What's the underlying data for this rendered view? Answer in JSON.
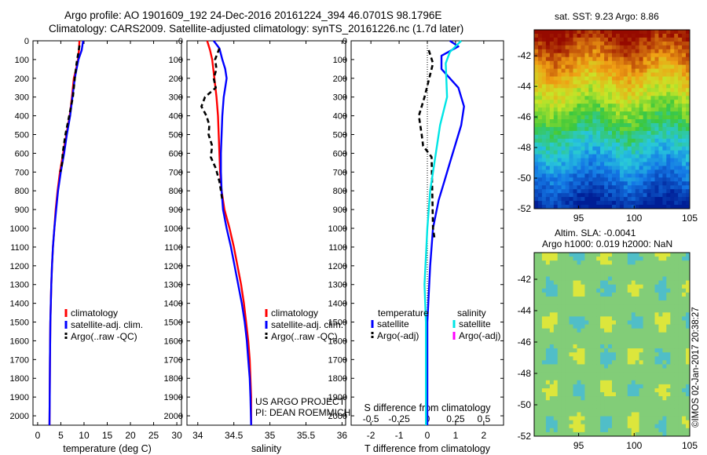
{
  "title_line1": "Argo profile: AO 1901609_192 24-Dec-2016 20161224_394 46.0701S 98.1796E",
  "title_line2": "Climatology: CARS2009. Satellite-adjusted climatology: synTS_20161226.nc (1.7d later)",
  "sst_title": "sat. SST: 9.23 Argo: 8.86",
  "sla_title_1": "Altim. SLA: -0.0041",
  "sla_title_2": "Argo h1000: 0.019 h2000: NaN",
  "stamp": "©IMOS 02-Jan-2017 20:38:27",
  "colors": {
    "climatology": "#ff0000",
    "satellite": "#0000ff",
    "argo": "#000000",
    "salinity_satellite": "#00e5e5",
    "salinity_argo": "#ff00ff"
  },
  "chart_data": [
    {
      "type": "line",
      "xlabel": "temperature (deg C)",
      "x_ticks": [
        "0",
        "5",
        "10",
        "15",
        "20",
        "25",
        "30"
      ],
      "xlim": [
        -1,
        31
      ],
      "y_ticks": [
        "0",
        "100",
        "200",
        "300",
        "400",
        "500",
        "600",
        "700",
        "800",
        "900",
        "1000",
        "1100",
        "1200",
        "1300",
        "1400",
        "1500",
        "1600",
        "1700",
        "1800",
        "1900",
        "2000"
      ],
      "ylim": [
        2050,
        0
      ],
      "legend": [
        "climatology",
        "satellite-adj. clim.",
        "Argo(..raw -QC)"
      ],
      "series": [
        {
          "name": "climatology",
          "color": "#ff0000",
          "points": [
            [
              9.0,
              0
            ],
            [
              8.9,
              50
            ],
            [
              8.7,
              100
            ],
            [
              8.3,
              150
            ],
            [
              7.8,
              200
            ],
            [
              7.4,
              300
            ],
            [
              6.9,
              400
            ],
            [
              6.2,
              500
            ],
            [
              5.5,
              600
            ],
            [
              4.8,
              700
            ],
            [
              4.3,
              800
            ],
            [
              3.9,
              900
            ],
            [
              3.6,
              1000
            ],
            [
              3.3,
              1100
            ],
            [
              3.1,
              1200
            ],
            [
              2.95,
              1300
            ],
            [
              2.85,
              1400
            ],
            [
              2.75,
              1500
            ],
            [
              2.65,
              1700
            ],
            [
              2.6,
              1900
            ],
            [
              2.55,
              2050
            ]
          ]
        },
        {
          "name": "satellite-adj. clim.",
          "color": "#0000ff",
          "points": [
            [
              9.8,
              0
            ],
            [
              9.5,
              50
            ],
            [
              8.8,
              100
            ],
            [
              8.4,
              150
            ],
            [
              8.0,
              200
            ],
            [
              7.5,
              300
            ],
            [
              7.0,
              400
            ],
            [
              6.3,
              500
            ],
            [
              5.7,
              600
            ],
            [
              5.0,
              700
            ],
            [
              4.4,
              800
            ],
            [
              4.0,
              900
            ],
            [
              3.6,
              1000
            ],
            [
              3.3,
              1100
            ],
            [
              3.1,
              1200
            ],
            [
              2.95,
              1300
            ],
            [
              2.85,
              1400
            ],
            [
              2.75,
              1500
            ],
            [
              2.65,
              1700
            ],
            [
              2.6,
              1900
            ],
            [
              2.55,
              2050
            ]
          ]
        },
        {
          "name": "Argo(..raw -QC)",
          "color": "#000000",
          "dashed": true,
          "points": [
            [
              9.0,
              25
            ],
            [
              8.8,
              60
            ],
            [
              8.4,
              120
            ],
            [
              8.0,
              200
            ],
            [
              7.6,
              300
            ],
            [
              6.8,
              400
            ],
            [
              6.0,
              500
            ],
            [
              5.4,
              600
            ],
            [
              5.3,
              650
            ],
            [
              4.9,
              700
            ]
          ]
        }
      ]
    },
    {
      "type": "line",
      "xlabel": "salinity",
      "x_ticks": [
        "34",
        "34.5",
        "35",
        "35.5",
        "36"
      ],
      "xlim": [
        33.85,
        36.05
      ],
      "legend": [
        "climatology",
        "satellite-adj. clim.",
        "Argo(..raw -QC)"
      ],
      "annotation": [
        "US ARGO PROJECT",
        "PI: DEAN ROEMMICH"
      ],
      "series": [
        {
          "name": "climatology",
          "color": "#ff0000",
          "points": [
            [
              34.13,
              0
            ],
            [
              34.17,
              50
            ],
            [
              34.2,
              100
            ],
            [
              34.23,
              200
            ],
            [
              34.26,
              300
            ],
            [
              34.28,
              400
            ],
            [
              34.29,
              500
            ],
            [
              34.3,
              600
            ],
            [
              34.31,
              700
            ],
            [
              34.33,
              800
            ],
            [
              34.37,
              900
            ],
            [
              34.44,
              1000
            ],
            [
              34.5,
              1100
            ],
            [
              34.55,
              1200
            ],
            [
              34.6,
              1300
            ],
            [
              34.64,
              1400
            ],
            [
              34.67,
              1500
            ],
            [
              34.7,
              1600
            ],
            [
              34.72,
              1700
            ],
            [
              34.73,
              1800
            ],
            [
              34.74,
              1900
            ],
            [
              34.74,
              2050
            ]
          ]
        },
        {
          "name": "satellite-adj. clim.",
          "color": "#0000ff",
          "points": [
            [
              34.22,
              0
            ],
            [
              34.3,
              40
            ],
            [
              34.34,
              100
            ],
            [
              34.38,
              150
            ],
            [
              34.4,
              200
            ],
            [
              34.38,
              250
            ],
            [
              34.36,
              300
            ],
            [
              34.34,
              400
            ],
            [
              34.33,
              500
            ],
            [
              34.32,
              600
            ],
            [
              34.32,
              700
            ],
            [
              34.33,
              800
            ],
            [
              34.35,
              900
            ],
            [
              34.4,
              1000
            ],
            [
              34.46,
              1100
            ],
            [
              34.51,
              1200
            ],
            [
              34.56,
              1300
            ],
            [
              34.61,
              1400
            ],
            [
              34.65,
              1500
            ],
            [
              34.68,
              1600
            ],
            [
              34.7,
              1700
            ],
            [
              34.72,
              1800
            ],
            [
              34.73,
              1900
            ],
            [
              34.74,
              2050
            ]
          ]
        },
        {
          "name": "Argo(..raw -QC)",
          "color": "#000000",
          "dashed": true,
          "points": [
            [
              34.3,
              40
            ],
            [
              34.24,
              100
            ],
            [
              34.26,
              150
            ],
            [
              34.22,
              200
            ],
            [
              34.25,
              250
            ],
            [
              34.1,
              300
            ],
            [
              34.05,
              350
            ],
            [
              34.12,
              400
            ],
            [
              34.16,
              450
            ],
            [
              34.15,
              500
            ],
            [
              34.2,
              560
            ],
            [
              34.18,
              620
            ],
            [
              34.25,
              680
            ],
            [
              34.3,
              750
            ],
            [
              34.32,
              800
            ],
            [
              34.34,
              850
            ]
          ]
        }
      ]
    },
    {
      "type": "line",
      "xlabel": "T difference from climatology",
      "x2label": "S difference from climatology",
      "x_ticks": [
        "-2",
        "-1",
        "0",
        "1",
        "2"
      ],
      "xlim": [
        -2.7,
        2.7
      ],
      "x2_ticks": [
        "-0.5",
        "-0.25",
        "0",
        "0.25",
        "0.5"
      ],
      "legend": [
        {
          "group": "temperature",
          "satellite": "satellite",
          "argo": "Argo(-adj)"
        },
        {
          "group": "salinity",
          "satellite": "satellite",
          "argo": "Argo(-adj)"
        }
      ],
      "series": [
        {
          "name": "temperature satellite",
          "color": "#0000ff",
          "points": [
            [
              0.8,
              0
            ],
            [
              1.1,
              30
            ],
            [
              0.5,
              80
            ],
            [
              0.5,
              150
            ],
            [
              1.1,
              250
            ],
            [
              1.3,
              350
            ],
            [
              1.2,
              450
            ],
            [
              1.0,
              550
            ],
            [
              0.8,
              650
            ],
            [
              0.6,
              750
            ],
            [
              0.4,
              850
            ],
            [
              0.2,
              1000
            ],
            [
              0.1,
              1200
            ],
            [
              0.0,
              1500
            ],
            [
              0.0,
              2050
            ]
          ]
        },
        {
          "name": "temperature Argo(-adj)",
          "color": "#000000",
          "dashed": true,
          "points": [
            [
              0.05,
              50
            ],
            [
              0.2,
              120
            ],
            [
              -0.1,
              300
            ],
            [
              -0.3,
              400
            ],
            [
              -0.2,
              500
            ],
            [
              -0.15,
              560
            ],
            [
              0.15,
              620
            ],
            [
              0.2,
              1000
            ],
            [
              0.25,
              1050
            ]
          ]
        },
        {
          "name": "salinity satellite",
          "color": "#00e5e5",
          "points": [
            [
              1.2,
              0
            ],
            [
              0.8,
              60
            ],
            [
              0.65,
              120
            ],
            [
              0.7,
              300
            ],
            [
              0.45,
              450
            ],
            [
              0.3,
              600
            ],
            [
              0.1,
              800
            ],
            [
              0.0,
              1000
            ],
            [
              -0.1,
              1300
            ],
            [
              -0.05,
              1500
            ],
            [
              -0.05,
              2050
            ]
          ]
        },
        {
          "name": "salinity Argo(-adj)",
          "color": "#ff00ff",
          "points": []
        }
      ]
    },
    {
      "type": "heatmap",
      "title": "sat. SST: 9.23 Argo: 8.86",
      "x_ticks": [
        "95",
        "100",
        "105"
      ],
      "xlim": [
        91,
        105
      ],
      "y_ticks": [
        "-42",
        "-44",
        "-46",
        "-48",
        "-50",
        "-52"
      ],
      "ylim": [
        -52,
        -40.3
      ],
      "colorbar": "none"
    },
    {
      "type": "heatmap",
      "title": "Altim. SLA: -0.0041",
      "subtitle": "Argo h1000: 0.019 h2000: NaN",
      "x_ticks": [
        "95",
        "100",
        "105"
      ],
      "xlim": [
        91,
        105
      ],
      "y_ticks": [
        "-42",
        "-44",
        "-46",
        "-48",
        "-50",
        "-52"
      ],
      "ylim": [
        -52,
        -40.3
      ]
    }
  ]
}
